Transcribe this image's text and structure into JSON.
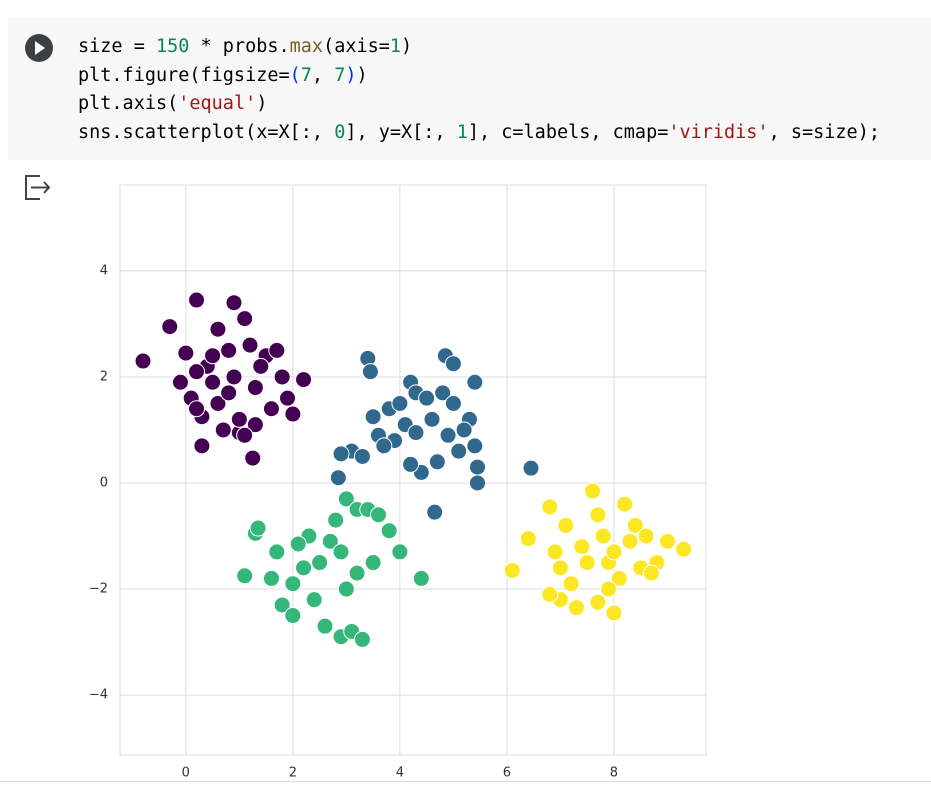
{
  "code": {
    "lines": [
      [
        {
          "text": "size = ",
          "color": "#000000"
        },
        {
          "text": "150",
          "color": "#098658"
        },
        {
          "text": " * probs.",
          "color": "#000000"
        },
        {
          "text": "max",
          "color": "#795e26"
        },
        {
          "text": "(axis=",
          "color": "#000000"
        },
        {
          "text": "1",
          "color": "#098658"
        },
        {
          "text": ")",
          "color": "#000000"
        }
      ],
      [
        {
          "text": "plt.figure(figsize=",
          "color": "#000000"
        },
        {
          "text": "(",
          "color": "#0431fa"
        },
        {
          "text": "7",
          "color": "#098658"
        },
        {
          "text": ", ",
          "color": "#000000"
        },
        {
          "text": "7",
          "color": "#098658"
        },
        {
          "text": ")",
          "color": "#0431fa"
        },
        {
          "text": ")",
          "color": "#000000"
        }
      ],
      [
        {
          "text": "plt.axis(",
          "color": "#000000"
        },
        {
          "text": "'equal'",
          "color": "#a31515"
        },
        {
          "text": ")",
          "color": "#000000"
        }
      ],
      [
        {
          "text": "sns.scatterplot(x=X[:, ",
          "color": "#000000"
        },
        {
          "text": "0",
          "color": "#098658"
        },
        {
          "text": "], y=X[:, ",
          "color": "#000000"
        },
        {
          "text": "1",
          "color": "#098658"
        },
        {
          "text": "], c=labels, cmap=",
          "color": "#000000"
        },
        {
          "text": "'viridis'",
          "color": "#a31515"
        },
        {
          "text": ", s=size);",
          "color": "#000000"
        }
      ]
    ]
  },
  "chart_data": {
    "type": "scatter",
    "grid": true,
    "xlim": [
      -1.23,
      9.72
    ],
    "ylim": [
      -5.13,
      5.62
    ],
    "xticks": [
      0,
      2,
      4,
      6,
      8
    ],
    "yticks": [
      {
        "value": -4,
        "label": "−4"
      },
      {
        "value": -2,
        "label": "−2"
      },
      0,
      2,
      4
    ],
    "series": [
      {
        "color": "#440154",
        "x": [
          -0.8,
          -0.3,
          0.2,
          0.9,
          1.1,
          0.6,
          0.0,
          0.4,
          0.8,
          1.2,
          1.5,
          1.8,
          2.0,
          2.2,
          1.9,
          1.6,
          1.3,
          1.0,
          0.7,
          0.3,
          0.1,
          -0.1,
          0.2,
          0.5,
          0.9,
          1.3,
          1.7,
          0.6,
          1.0,
          0.3,
          0.8,
          1.4,
          0.5,
          1.1,
          0.2,
          1.25
        ],
        "y": [
          2.3,
          2.95,
          3.45,
          3.4,
          3.1,
          2.9,
          2.45,
          2.2,
          2.5,
          2.6,
          2.4,
          2.0,
          1.3,
          1.95,
          1.6,
          1.4,
          1.1,
          0.95,
          1.0,
          1.25,
          1.6,
          1.9,
          2.1,
          2.4,
          2.0,
          1.8,
          2.5,
          1.5,
          1.2,
          0.7,
          1.7,
          2.2,
          1.9,
          0.9,
          1.4,
          0.47
        ]
      },
      {
        "color": "#31688e",
        "x": [
          3.4,
          3.45,
          4.2,
          4.85,
          5.0,
          5.4,
          5.3,
          4.65,
          3.1,
          2.9,
          2.85,
          3.3,
          3.6,
          3.8,
          4.0,
          4.3,
          4.5,
          4.8,
          5.0,
          5.2,
          5.4,
          5.45,
          5.45,
          4.4,
          4.7,
          3.9,
          4.1,
          3.7,
          4.3,
          4.6,
          5.1,
          4.9,
          3.5,
          4.2,
          6.45
        ],
        "y": [
          2.35,
          2.1,
          1.9,
          2.4,
          2.25,
          1.9,
          1.2,
          -0.55,
          0.6,
          0.55,
          0.1,
          0.5,
          0.9,
          1.4,
          1.5,
          1.7,
          1.6,
          1.7,
          1.5,
          1.0,
          0.7,
          0.3,
          0.0,
          0.2,
          0.4,
          0.8,
          1.1,
          0.7,
          0.95,
          1.2,
          0.6,
          0.9,
          1.25,
          0.35,
          0.28
        ]
      },
      {
        "color": "#35b779",
        "x": [
          1.3,
          1.35,
          1.1,
          1.6,
          1.7,
          1.8,
          2.0,
          2.2,
          2.4,
          2.6,
          2.8,
          3.0,
          3.2,
          3.4,
          3.6,
          3.8,
          4.0,
          4.4,
          2.5,
          2.9,
          3.1,
          3.3,
          2.3,
          2.7,
          3.5,
          2.0,
          2.9,
          3.2,
          3.0,
          2.1
        ],
        "y": [
          -0.95,
          -0.85,
          -1.75,
          -1.8,
          -1.3,
          -2.3,
          -2.5,
          -1.6,
          -2.2,
          -2.7,
          -0.7,
          -0.3,
          -0.5,
          -0.5,
          -0.6,
          -0.9,
          -1.3,
          -1.8,
          -1.5,
          -2.9,
          -2.8,
          -2.95,
          -1.0,
          -1.1,
          -1.5,
          -1.9,
          -1.3,
          -1.7,
          -2.0,
          -1.15
        ]
      },
      {
        "color": "#fde725",
        "x": [
          6.1,
          6.4,
          6.8,
          6.9,
          7.0,
          7.3,
          7.6,
          7.7,
          7.9,
          8.0,
          8.2,
          8.4,
          8.6,
          8.8,
          9.0,
          9.3,
          7.1,
          7.4,
          7.8,
          8.1,
          8.5,
          7.2,
          7.5,
          8.3,
          6.8,
          7.7,
          8.0,
          7.0,
          8.7,
          7.9
        ],
        "y": [
          -1.65,
          -1.05,
          -0.45,
          -1.3,
          -2.2,
          -2.35,
          -0.15,
          -2.25,
          -1.5,
          -2.45,
          -0.4,
          -0.8,
          -1.0,
          -1.5,
          -1.1,
          -1.25,
          -0.8,
          -1.2,
          -1.0,
          -1.8,
          -1.6,
          -1.9,
          -1.5,
          -1.1,
          -2.1,
          -0.6,
          -1.3,
          -1.6,
          -1.7,
          -2.0
        ]
      }
    ]
  }
}
